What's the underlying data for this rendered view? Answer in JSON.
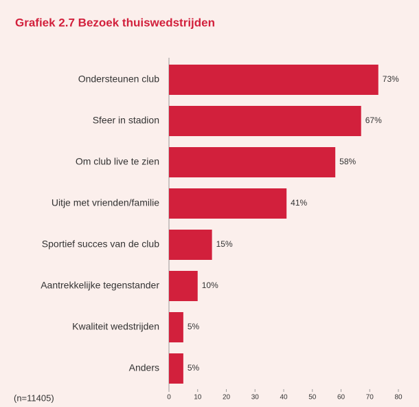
{
  "chart_data": {
    "type": "bar",
    "orientation": "horizontal",
    "title": "Grafiek 2.7 Bezoek thuiswedstrijden",
    "note": "(n=11405)",
    "categories": [
      "Ondersteunen club",
      "Sfeer in stadion",
      "Om club live te zien",
      "Uitje met vrienden/familie",
      "Sportief succes van de club",
      "Aantrekkelijke tegenstander",
      "Kwaliteit wedstrijden",
      "Anders"
    ],
    "values": [
      73,
      67,
      58,
      41,
      15,
      10,
      5,
      5
    ],
    "value_labels": [
      "73%",
      "67%",
      "58%",
      "41%",
      "15%",
      "10%",
      "5%",
      "5%"
    ],
    "color": "#d2203c",
    "xlim": [
      0,
      80
    ],
    "xticks": [
      0,
      10,
      20,
      30,
      40,
      50,
      60,
      70,
      80
    ]
  }
}
